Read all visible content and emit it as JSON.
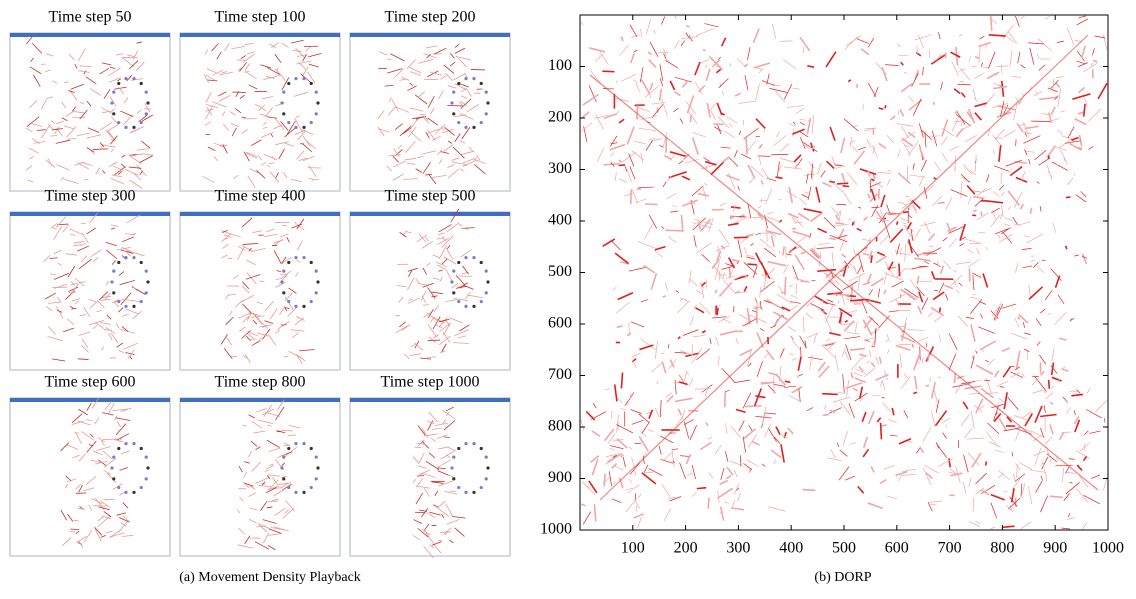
{
  "figure": {
    "left": {
      "frames": [
        "Time step 50",
        "Time step 100",
        "Time step 200",
        "Time step 300",
        "Time step 400",
        "Time step 500",
        "Time step 600",
        "Time step 800",
        "Time step 1000"
      ],
      "caption": "(a)  Movement Density Playback"
    },
    "right": {
      "caption": "(b)  DORP",
      "xlim": [
        0,
        1000
      ],
      "xticks": [
        100,
        200,
        300,
        400,
        500,
        600,
        700,
        800,
        900,
        1000
      ],
      "ylim": [
        0,
        1000
      ],
      "yticks": [
        100,
        200,
        300,
        400,
        500,
        600,
        700,
        800,
        900,
        1000
      ]
    }
  }
}
